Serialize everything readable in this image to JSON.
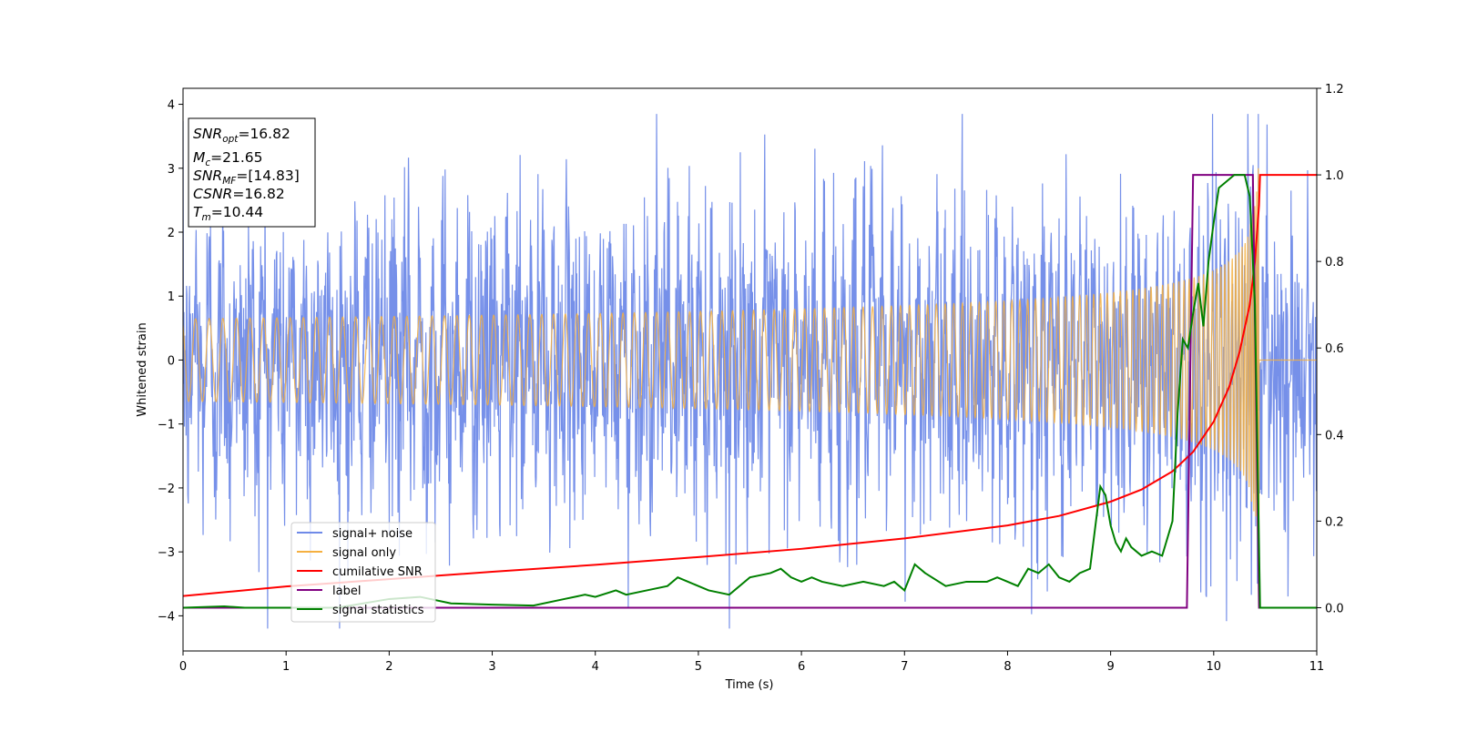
{
  "chart_data": {
    "type": "line",
    "title": "",
    "xlabel": "Time (s)",
    "ylabel": "Whitened strain",
    "ylabel_right": "",
    "xlim": [
      0,
      11
    ],
    "ylim": [
      -4.55,
      4.25
    ],
    "ylim_right": [
      -0.1,
      1.2
    ],
    "x_ticks": [
      "0",
      "1",
      "2",
      "3",
      "4",
      "5",
      "6",
      "7",
      "8",
      "9",
      "10",
      "11"
    ],
    "x_tick_values": [
      0,
      1,
      2,
      3,
      4,
      5,
      6,
      7,
      8,
      9,
      10,
      11
    ],
    "y_ticks": [
      "−4",
      "−3",
      "−2",
      "−1",
      "0",
      "1",
      "2",
      "3",
      "4"
    ],
    "y_tick_values": [
      -4,
      -3,
      -2,
      -1,
      0,
      1,
      2,
      3,
      4
    ],
    "y_right_ticks": [
      "0.0",
      "0.2",
      "0.4",
      "0.6",
      "0.8",
      "1.0",
      "1.2"
    ],
    "y_right_tick_values": [
      0.0,
      0.2,
      0.4,
      0.6,
      0.8,
      1.0,
      1.2
    ],
    "grid": false,
    "legend_position": "lower-left",
    "annotation": {
      "snr_opt": "16.82",
      "mc": "21.65",
      "snr_mf": "[14.83]",
      "csnr": "16.82",
      "tm": "10.44"
    },
    "series": [
      {
        "name": "signal+ noise",
        "axis": "left",
        "color": "#6f8ae8",
        "description_of_values": "white Gaussian noise, std ~1.15, spanning about -4.2 to 3.85",
        "x_range": [
          0,
          11
        ],
        "noise_std": 1.15
      },
      {
        "name": "signal only",
        "axis": "left",
        "color": "#f5b041",
        "description_of_values": "chirp oscillation growing in amplitude, merger near t = 10.44",
        "x_range": [
          0,
          11
        ],
        "merger_time": 10.44,
        "peak_amplitude": 3.25
      },
      {
        "name": "cumilative SNR",
        "axis": "right",
        "color": "#ff0000",
        "x": [
          0,
          1,
          2,
          3,
          4,
          5,
          6,
          7,
          8,
          8.5,
          9,
          9.3,
          9.6,
          9.8,
          10.0,
          10.15,
          10.25,
          10.35,
          10.4,
          10.44,
          10.45,
          11
        ],
        "y": [
          0.027,
          0.049,
          0.066,
          0.083,
          0.099,
          0.117,
          0.136,
          0.16,
          0.19,
          0.212,
          0.245,
          0.273,
          0.315,
          0.36,
          0.43,
          0.51,
          0.59,
          0.7,
          0.8,
          0.93,
          1.0,
          1.0
        ]
      },
      {
        "name": "label",
        "axis": "right",
        "color": "#800080",
        "x": [
          0,
          9.74,
          9.8,
          10.38,
          10.44,
          11
        ],
        "y": [
          0,
          0,
          1,
          1,
          0,
          0
        ]
      },
      {
        "name": "signal statistics",
        "axis": "right",
        "color": "#008000",
        "x": [
          0,
          0.4,
          0.6,
          1.0,
          1.5,
          2.0,
          2.3,
          2.6,
          3.0,
          3.4,
          3.7,
          3.9,
          4.0,
          4.2,
          4.3,
          4.5,
          4.7,
          4.8,
          4.9,
          5.0,
          5.1,
          5.3,
          5.5,
          5.7,
          5.8,
          5.9,
          6.0,
          6.1,
          6.2,
          6.4,
          6.6,
          6.8,
          6.9,
          7.0,
          7.1,
          7.2,
          7.4,
          7.6,
          7.8,
          7.9,
          8.0,
          8.1,
          8.2,
          8.3,
          8.4,
          8.5,
          8.6,
          8.7,
          8.8,
          8.9,
          8.95,
          9.0,
          9.05,
          9.1,
          9.15,
          9.2,
          9.3,
          9.4,
          9.5,
          9.6,
          9.65,
          9.7,
          9.75,
          9.8,
          9.85,
          9.9,
          9.95,
          10.0,
          10.05,
          10.1,
          10.15,
          10.2,
          10.25,
          10.3,
          10.35,
          10.4,
          10.45,
          10.5,
          11
        ],
        "y": [
          0.0,
          0.003,
          0.0,
          0.0,
          0.0,
          0.02,
          0.025,
          0.01,
          0.007,
          0.005,
          0.02,
          0.03,
          0.025,
          0.04,
          0.03,
          0.04,
          0.05,
          0.07,
          0.06,
          0.05,
          0.04,
          0.03,
          0.07,
          0.08,
          0.09,
          0.07,
          0.06,
          0.07,
          0.06,
          0.05,
          0.06,
          0.05,
          0.06,
          0.04,
          0.1,
          0.08,
          0.05,
          0.06,
          0.06,
          0.07,
          0.06,
          0.05,
          0.09,
          0.08,
          0.1,
          0.07,
          0.06,
          0.08,
          0.09,
          0.28,
          0.26,
          0.19,
          0.15,
          0.13,
          0.16,
          0.14,
          0.12,
          0.13,
          0.12,
          0.2,
          0.45,
          0.62,
          0.6,
          0.68,
          0.75,
          0.65,
          0.8,
          0.89,
          0.97,
          0.98,
          0.99,
          1.0,
          1.0,
          1.0,
          0.95,
          0.7,
          0.0,
          0.0,
          0.0
        ]
      }
    ]
  }
}
